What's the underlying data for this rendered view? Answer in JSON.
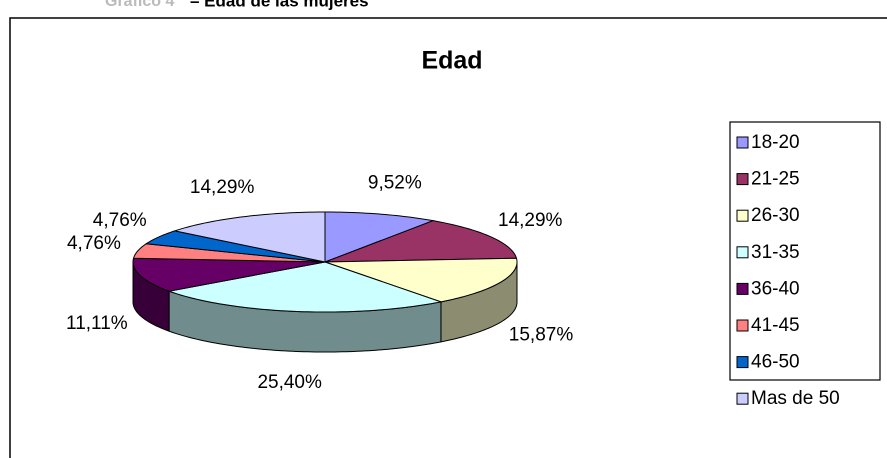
{
  "header": {
    "caption_prefix": "Gráfico 4",
    "caption": "– Edad  de las mujeres"
  },
  "chart_data": {
    "type": "pie",
    "title": "Edad",
    "categories": [
      "18-20",
      "21-25",
      "26-30",
      "31-35",
      "36-40",
      "41-45",
      "46-50",
      "Mas de 50"
    ],
    "values": [
      9.52,
      14.29,
      15.87,
      25.4,
      11.11,
      4.76,
      4.76,
      14.29
    ],
    "value_labels": [
      "9,52%",
      "14,29%",
      "15,87%",
      "25,40%",
      "11,11%",
      "4,76%",
      "4,76%",
      "14,29%"
    ],
    "colors": [
      "#9999ff",
      "#993366",
      "#ffffcc",
      "#ccffff",
      "#660066",
      "#ff8080",
      "#0066cc",
      "#ccccff"
    ],
    "legend": "right",
    "three_d": true
  }
}
